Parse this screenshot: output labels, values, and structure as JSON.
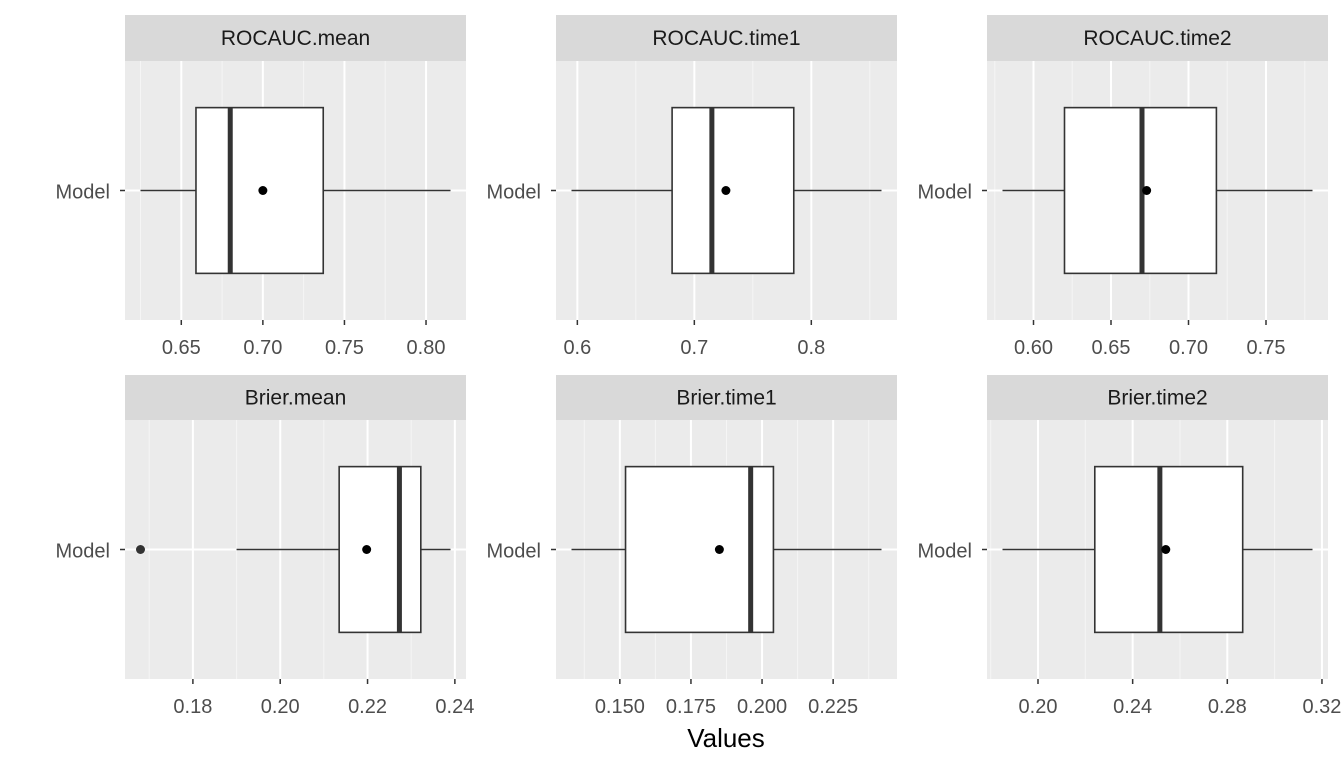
{
  "chart_data": [
    {
      "type": "boxplot",
      "title": "ROCAUC.mean",
      "category": "Model",
      "xlim": [
        0.625,
        0.815
      ],
      "ticks": [
        0.65,
        0.7,
        0.75,
        0.8
      ],
      "tick_labels": [
        "0.65",
        "0.70",
        "0.75",
        "0.80"
      ],
      "stats": {
        "whisker_low": 0.625,
        "q1": 0.659,
        "median": 0.68,
        "q3": 0.737,
        "whisker_high": 0.815,
        "mean": 0.7
      },
      "outliers": []
    },
    {
      "type": "boxplot",
      "title": "ROCAUC.time1",
      "category": "Model",
      "xlim": [
        0.595,
        0.86
      ],
      "ticks": [
        0.6,
        0.7,
        0.8
      ],
      "tick_labels": [
        "0.6",
        "0.7",
        "0.8"
      ],
      "stats": {
        "whisker_low": 0.595,
        "q1": 0.681,
        "median": 0.715,
        "q3": 0.785,
        "whisker_high": 0.86,
        "mean": 0.727
      },
      "outliers": []
    },
    {
      "type": "boxplot",
      "title": "ROCAUC.time2",
      "category": "Model",
      "xlim": [
        0.58,
        0.78
      ],
      "ticks": [
        0.6,
        0.65,
        0.7,
        0.75
      ],
      "tick_labels": [
        "0.60",
        "0.65",
        "0.70",
        "0.75"
      ],
      "stats": {
        "whisker_low": 0.58,
        "q1": 0.62,
        "median": 0.67,
        "q3": 0.718,
        "whisker_high": 0.78,
        "mean": 0.673
      },
      "outliers": []
    },
    {
      "type": "boxplot",
      "title": "Brier.mean",
      "category": "Model",
      "xlim": [
        0.168,
        0.239
      ],
      "ticks": [
        0.18,
        0.2,
        0.22,
        0.24
      ],
      "tick_labels": [
        "0.18",
        "0.20",
        "0.22",
        "0.24"
      ],
      "stats": {
        "whisker_low": 0.19,
        "q1": 0.2135,
        "median": 0.2273,
        "q3": 0.2322,
        "whisker_high": 0.239,
        "mean": 0.2198
      },
      "outliers": [
        0.168
      ]
    },
    {
      "type": "boxplot",
      "title": "Brier.time1",
      "category": "Model",
      "xlim": [
        0.133,
        0.242
      ],
      "ticks": [
        0.15,
        0.175,
        0.2,
        0.225
      ],
      "tick_labels": [
        "0.150",
        "0.175",
        "0.200",
        "0.225"
      ],
      "stats": {
        "whisker_low": 0.133,
        "q1": 0.152,
        "median": 0.196,
        "q3": 0.204,
        "whisker_high": 0.242,
        "mean": 0.185
      },
      "outliers": []
    },
    {
      "type": "boxplot",
      "title": "Brier.time2",
      "category": "Model",
      "xlim": [
        0.185,
        0.316
      ],
      "ticks": [
        0.2,
        0.24,
        0.28,
        0.32
      ],
      "tick_labels": [
        "0.20",
        "0.24",
        "0.28",
        "0.32"
      ],
      "stats": {
        "whisker_low": 0.185,
        "q1": 0.224,
        "median": 0.2515,
        "q3": 0.2865,
        "whisker_high": 0.316,
        "mean": 0.254
      },
      "outliers": []
    }
  ],
  "xlabel": "Values",
  "colors": {
    "panel_bg": "#EBEBEB",
    "strip_bg": "#D9D9D9",
    "grid_major": "#FFFFFF",
    "grid_minor": "#F5F5F5",
    "box_fill": "#FFFFFF",
    "line": "#333333",
    "point": "#000000"
  }
}
